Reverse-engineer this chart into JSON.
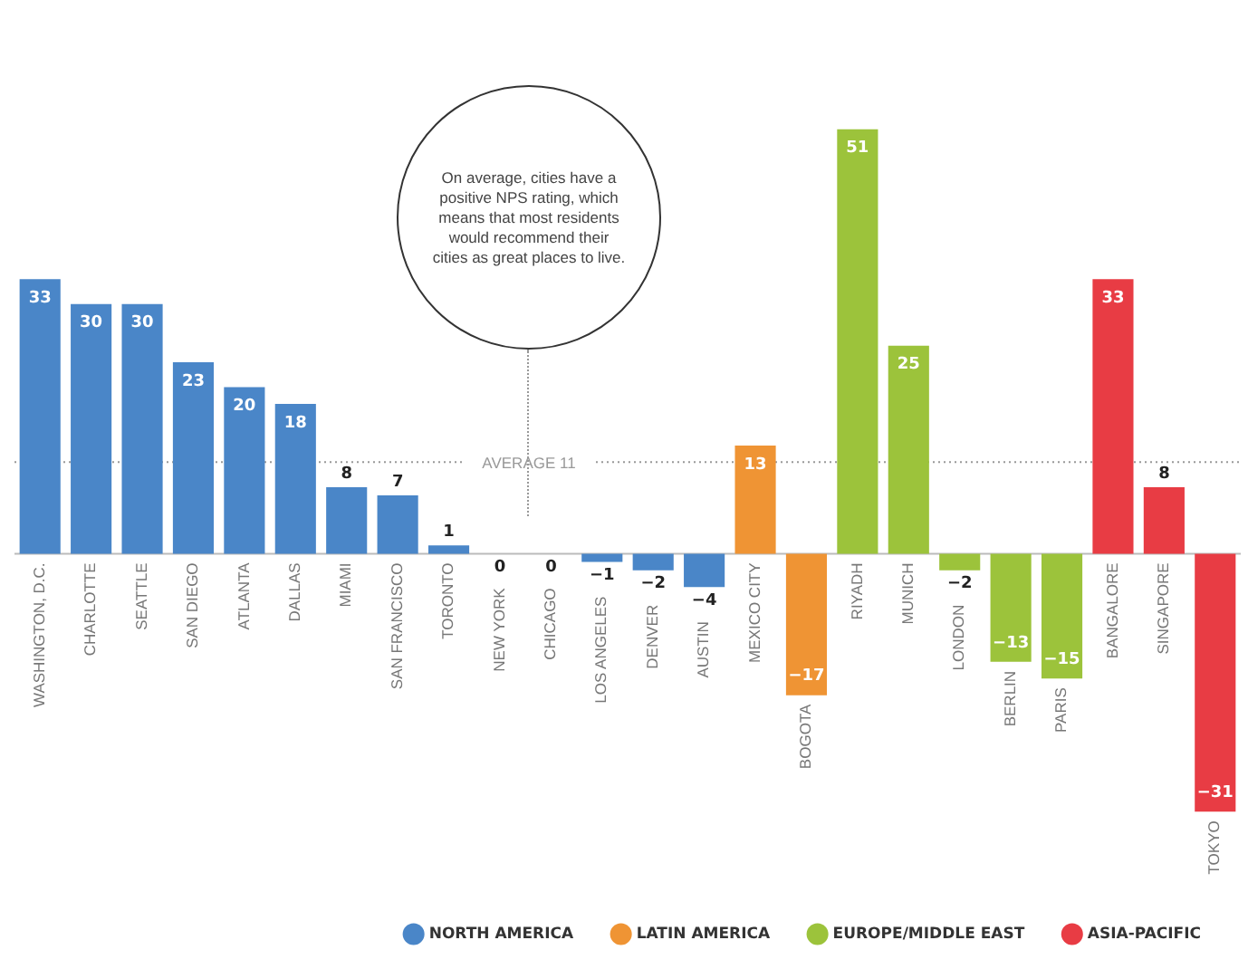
{
  "chart_data": {
    "type": "bar",
    "categories": [
      "WASHINGTON, D.C.",
      "CHARLOTTE",
      "SEATTLE",
      "SAN DIEGO",
      "ATLANTA",
      "DALLAS",
      "MIAMI",
      "SAN FRANCISCO",
      "TORONTO",
      "NEW YORK",
      "CHICAGO",
      "LOS ANGELES",
      "DENVER",
      "AUSTIN",
      "MEXICO CITY",
      "BOGOTA",
      "RIYADH",
      "MUNICH",
      "LONDON",
      "BERLIN",
      "PARIS",
      "BANGALORE",
      "SINGAPORE",
      "TOKYO"
    ],
    "series": [
      {
        "name": "NORTH AMERICA",
        "color": "#4a86c8",
        "values": [
          33,
          30,
          30,
          23,
          20,
          18,
          8,
          7,
          1,
          0,
          0,
          -1,
          -2,
          -4,
          null,
          null,
          null,
          null,
          null,
          null,
          null,
          null,
          null,
          null
        ]
      },
      {
        "name": "LATIN AMERICA",
        "color": "#ef9434",
        "values": [
          null,
          null,
          null,
          null,
          null,
          null,
          null,
          null,
          null,
          null,
          null,
          null,
          null,
          null,
          13,
          -17,
          null,
          null,
          null,
          null,
          null,
          null,
          null,
          null
        ]
      },
      {
        "name": "EUROPE/MIDDLE EAST",
        "color": "#9cc33b",
        "values": [
          null,
          null,
          null,
          null,
          null,
          null,
          null,
          null,
          null,
          null,
          null,
          null,
          null,
          null,
          null,
          null,
          51,
          25,
          -2,
          -13,
          -15,
          null,
          null,
          null
        ]
      },
      {
        "name": "ASIA-PACIFIC",
        "color": "#e83c44",
        "values": [
          null,
          null,
          null,
          null,
          null,
          null,
          null,
          null,
          null,
          null,
          null,
          null,
          null,
          null,
          null,
          null,
          null,
          null,
          null,
          null,
          null,
          33,
          8,
          -31
        ]
      }
    ],
    "data_labels": true,
    "tick_labels": "x",
    "ref_lines": [
      {
        "axis": "y",
        "value": 11,
        "label": "AVERAGE 11",
        "line_style": "dotted"
      }
    ],
    "annotations": [
      "On average, cities have a positive NPS rating, which means that most residents would recommend their cities as great places to live."
    ],
    "legend": "bottom"
  }
}
